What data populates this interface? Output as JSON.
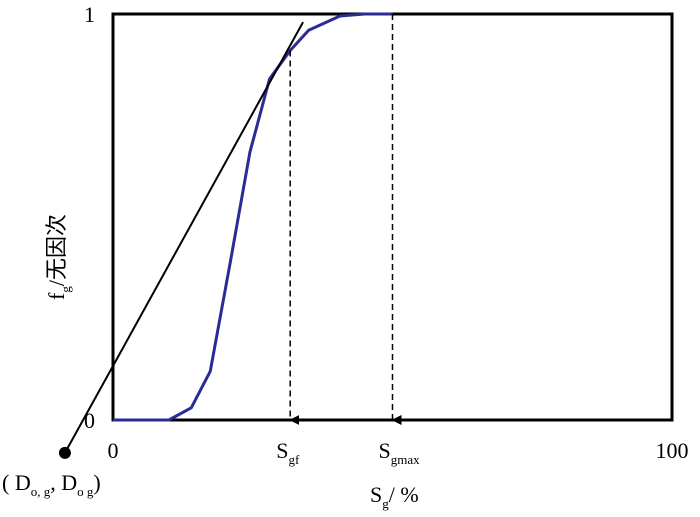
{
  "chart_data": {
    "type": "line",
    "xlabel": [
      "S",
      "g",
      "/ %"
    ],
    "ylabel": [
      "f",
      "g",
      "/无因次"
    ],
    "xlim": [
      0,
      100
    ],
    "ylim": [
      0,
      1
    ],
    "xticks": [
      0,
      100
    ],
    "yticks": [
      0,
      1
    ],
    "series": [
      {
        "color": "#2b2b96",
        "x": [
          0,
          10,
          14,
          17.4,
          21,
          24.5,
          28,
          31.7,
          35,
          40.6,
          45,
          50
        ],
        "values": [
          0,
          0,
          0.03,
          0.12,
          0.39,
          0.66,
          0.84,
          0.91,
          0.96,
          0.995,
          1,
          1
        ]
      },
      {
        "color": "#000000",
        "x": [
          -8.6,
          34
        ],
        "values": [
          -0.081,
          0.98
        ]
      }
    ],
    "point": {
      "x": -8.6,
      "y": -0.081,
      "label": [
        "( D",
        "o, g",
        ", D",
        "o g",
        ")"
      ]
    },
    "markers": [
      {
        "x": 31.7,
        "y": 0.91,
        "label": [
          "S",
          "gf"
        ]
      },
      {
        "x": 50,
        "y": 1,
        "label": [
          "S",
          "gmax"
        ]
      }
    ]
  }
}
